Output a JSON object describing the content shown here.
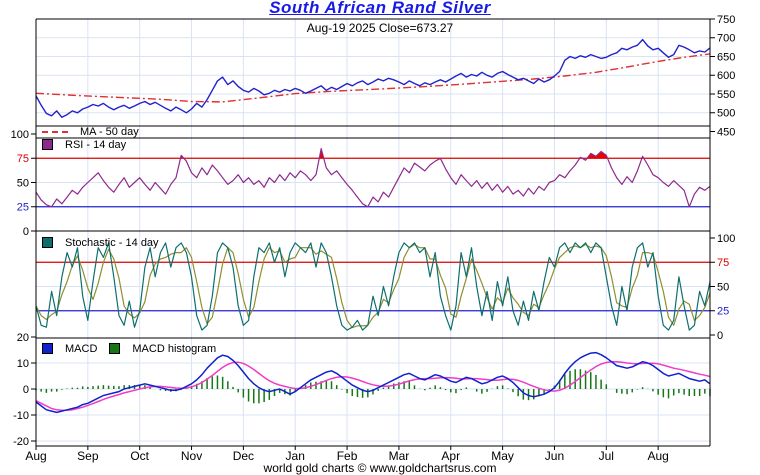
{
  "header": {
    "title": "South African Rand Silver",
    "subtitle": "Aug-19  2025   Close=673.27",
    "date": "Aug-19 2025",
    "close": 673.27
  },
  "footer": {
    "credit": "world gold charts © www.goldchartsrus.com"
  },
  "colors": {
    "title": "#1a1ae6",
    "price_line": "#2222cc",
    "ma50": "#e03030",
    "rsi": "#8e2a8e",
    "rsi_fill": "#ee0000",
    "stoch_k": "#0e6e6e",
    "stoch_d": "#8f8f2e",
    "macd": "#1122cc",
    "signal": "#f03cc8",
    "histogram": "#157815",
    "overbought_line": "#dd0000",
    "oversold_line": "#2222cc",
    "grid": "#d9e3f4",
    "border": "#000000",
    "label": "#000000"
  },
  "x_axis": {
    "tick_labels": [
      "Aug",
      "Sep",
      "Oct",
      "Nov",
      "Dec",
      "Jan",
      "Feb",
      "Mar",
      "Apr",
      "May",
      "Jun",
      "Jul",
      "Aug"
    ],
    "points_per_month": 10,
    "n_points": 131
  },
  "chart_data": [
    {
      "type": "line",
      "name": "price",
      "series_name": "ZAR Silver close",
      "legend_ma": "MA - 50 day",
      "yticks": [
        750,
        700,
        650,
        600,
        550,
        500,
        450
      ],
      "ytick_side": "right",
      "ylim": [
        462,
        750
      ],
      "close": [
        545,
        520,
        498,
        492,
        505,
        488,
        495,
        505,
        500,
        510,
        515,
        522,
        518,
        525,
        515,
        508,
        515,
        520,
        512,
        518,
        525,
        530,
        522,
        528,
        520,
        512,
        505,
        515,
        508,
        500,
        510,
        525,
        515,
        535,
        560,
        585,
        595,
        575,
        585,
        570,
        560,
        555,
        565,
        558,
        548,
        552,
        560,
        555,
        562,
        558,
        565,
        560,
        552,
        558,
        565,
        572,
        560,
        568,
        562,
        570,
        578,
        572,
        580,
        585,
        575,
        582,
        590,
        585,
        592,
        588,
        582,
        575,
        585,
        578,
        572,
        580,
        575,
        582,
        588,
        582,
        590,
        598,
        605,
        595,
        602,
        598,
        608,
        600,
        595,
        605,
        610,
        602,
        595,
        588,
        592,
        585,
        578,
        590,
        582,
        588,
        598,
        610,
        640,
        650,
        645,
        652,
        648,
        655,
        650,
        645,
        648,
        655,
        660,
        672,
        668,
        675,
        680,
        695,
        678,
        668,
        672,
        660,
        648,
        655,
        680,
        675,
        668,
        660,
        665,
        662,
        673
      ],
      "ma50_points": [
        [
          0,
          552
        ],
        [
          8,
          546
        ],
        [
          16,
          541
        ],
        [
          24,
          536
        ],
        [
          30,
          530
        ],
        [
          36,
          529
        ],
        [
          42,
          538
        ],
        [
          50,
          551
        ],
        [
          58,
          558
        ],
        [
          66,
          563
        ],
        [
          74,
          569
        ],
        [
          82,
          576
        ],
        [
          90,
          584
        ],
        [
          96,
          590
        ],
        [
          102,
          598
        ],
        [
          108,
          608
        ],
        [
          114,
          622
        ],
        [
          120,
          637
        ],
        [
          125,
          648
        ],
        [
          130,
          657
        ]
      ]
    },
    {
      "type": "line",
      "name": "rsi",
      "legend": "RSI - 14 day",
      "yticks": [
        100,
        75,
        50,
        25,
        0
      ],
      "ytick_side": "left",
      "ylim": [
        0,
        100
      ],
      "overbought": 75,
      "oversold": 25,
      "values": [
        40,
        32,
        27,
        25,
        33,
        28,
        35,
        42,
        38,
        45,
        50,
        55,
        60,
        52,
        45,
        40,
        48,
        55,
        45,
        50,
        55,
        48,
        42,
        50,
        44,
        38,
        48,
        55,
        78,
        72,
        60,
        55,
        65,
        58,
        68,
        62,
        55,
        48,
        52,
        58,
        50,
        55,
        48,
        52,
        45,
        55,
        50,
        58,
        52,
        60,
        55,
        62,
        58,
        52,
        58,
        85,
        65,
        58,
        62,
        55,
        48,
        42,
        35,
        28,
        25,
        35,
        30,
        40,
        35,
        45,
        55,
        65,
        60,
        70,
        66,
        62,
        68,
        72,
        75,
        64,
        55,
        48,
        58,
        52,
        46,
        52,
        44,
        50,
        42,
        48,
        40,
        46,
        38,
        42,
        36,
        44,
        38,
        46,
        42,
        50,
        52,
        58,
        55,
        62,
        68,
        76,
        73,
        80,
        77,
        82,
        78,
        65,
        55,
        48,
        56,
        50,
        62,
        77,
        68,
        58,
        55,
        50,
        46,
        52,
        47,
        42,
        25,
        38,
        45,
        42,
        46
      ]
    },
    {
      "type": "line",
      "name": "stochastic",
      "legend": "Stochastic - 14 day",
      "yticks": [
        100,
        75,
        50,
        25,
        0
      ],
      "ytick_side": "right",
      "ylim": [
        0,
        100
      ],
      "overbought": 75,
      "oversold": 25,
      "d_smoothing": 3,
      "k_values": [
        30,
        10,
        8,
        45,
        20,
        60,
        85,
        70,
        90,
        40,
        15,
        55,
        90,
        80,
        95,
        60,
        20,
        10,
        35,
        8,
        25,
        70,
        90,
        60,
        85,
        95,
        70,
        90,
        95,
        85,
        60,
        20,
        5,
        10,
        40,
        85,
        95,
        90,
        70,
        30,
        10,
        15,
        60,
        90,
        85,
        95,
        75,
        90,
        60,
        85,
        95,
        90,
        85,
        95,
        70,
        95,
        85,
        60,
        30,
        10,
        5,
        8,
        15,
        5,
        10,
        40,
        20,
        50,
        30,
        60,
        85,
        95,
        90,
        95,
        85,
        90,
        60,
        85,
        40,
        20,
        5,
        30,
        85,
        60,
        90,
        50,
        20,
        45,
        15,
        55,
        30,
        60,
        25,
        10,
        35,
        15,
        45,
        25,
        55,
        80,
        70,
        90,
        95,
        85,
        95,
        90,
        95,
        85,
        95,
        90,
        60,
        30,
        10,
        50,
        25,
        70,
        90,
        95,
        70,
        85,
        40,
        10,
        5,
        15,
        60,
        30,
        5,
        10,
        45,
        30,
        55
      ]
    },
    {
      "type": "line+histogram",
      "name": "macd",
      "legend_macd": "MACD",
      "legend_hist": "MACD histogram",
      "yticks": [
        20,
        10,
        0,
        -10,
        -20
      ],
      "ytick_side": "left",
      "ylim": [
        -22.3,
        22.3
      ],
      "macd": [
        -5,
        -6.5,
        -8,
        -8.5,
        -9,
        -8.5,
        -8,
        -7.5,
        -7,
        -6,
        -5.5,
        -4.5,
        -3.5,
        -2.5,
        -2,
        -1.5,
        -1,
        0,
        0.5,
        1,
        1.5,
        2,
        1.5,
        1,
        0.5,
        0,
        -0.5,
        -0.5,
        0,
        1,
        2,
        3.5,
        5.5,
        8,
        10,
        12,
        13,
        12.5,
        11,
        9,
        6.5,
        4,
        2,
        0.5,
        -0.5,
        -1,
        -0.5,
        0,
        -1,
        -2,
        -1,
        0.5,
        2,
        3.5,
        4.5,
        5.5,
        6.5,
        7,
        6,
        4.5,
        3,
        1.5,
        0.5,
        -0.5,
        -1,
        -0.5,
        0.5,
        1.5,
        2.5,
        3.5,
        4.5,
        5.5,
        6,
        5,
        4,
        3.5,
        4.5,
        5.5,
        5,
        4,
        3,
        2.5,
        3.5,
        4.5,
        4,
        3,
        2,
        2.5,
        3.5,
        4.5,
        5,
        4,
        2.5,
        0.5,
        -1.5,
        -2.5,
        -3,
        -2.5,
        -2,
        -1,
        0.5,
        3,
        6,
        8.5,
        10.5,
        12,
        13,
        13.8,
        14,
        13.2,
        12,
        10.5,
        9,
        8.5,
        8,
        8.5,
        9.5,
        10.5,
        10,
        9,
        7.5,
        6,
        5,
        5.5,
        6,
        5,
        4,
        3.5,
        3,
        3.5,
        2
      ],
      "signal": [
        -4.5,
        -5.5,
        -6.5,
        -7.5,
        -8,
        -8.2,
        -8.2,
        -8,
        -7.5,
        -7,
        -6.3,
        -5.6,
        -4.8,
        -4,
        -3.3,
        -2.7,
        -2.1,
        -1.5,
        -1,
        -0.5,
        0,
        0.5,
        0.8,
        1,
        1,
        0.8,
        0.6,
        0.4,
        0.3,
        0.4,
        0.8,
        1.5,
        2.5,
        3.8,
        5.2,
        6.8,
        8.3,
        9.5,
        10.2,
        10.3,
        9.8,
        8.8,
        7.5,
        6,
        4.5,
        3.2,
        2.2,
        1.5,
        1,
        0.5,
        0.2,
        0.2,
        0.5,
        1,
        1.7,
        2.5,
        3.3,
        4,
        4.5,
        4.7,
        4.6,
        4.2,
        3.6,
        2.9,
        2.2,
        1.6,
        1.2,
        1,
        1.1,
        1.4,
        1.9,
        2.5,
        3.1,
        3.6,
        3.9,
        4,
        4,
        4.1,
        4.3,
        4.4,
        4.3,
        4.1,
        3.9,
        3.9,
        4,
        4,
        3.8,
        3.6,
        3.4,
        3.4,
        3.6,
        3.8,
        3.7,
        3.3,
        2.6,
        1.8,
        1,
        0.3,
        -0.3,
        -0.7,
        -0.8,
        -0.5,
        0.3,
        1.5,
        2.9,
        4.4,
        5.9,
        7.3,
        8.6,
        9.6,
        10.2,
        10.5,
        10.5,
        10.3,
        10,
        9.8,
        9.7,
        9.8,
        9.9,
        9.9,
        9.7,
        9.2,
        8.6,
        8,
        7.6,
        7.2,
        6.7,
        6.2,
        5.7,
        5.3,
        4.8
      ]
    }
  ]
}
